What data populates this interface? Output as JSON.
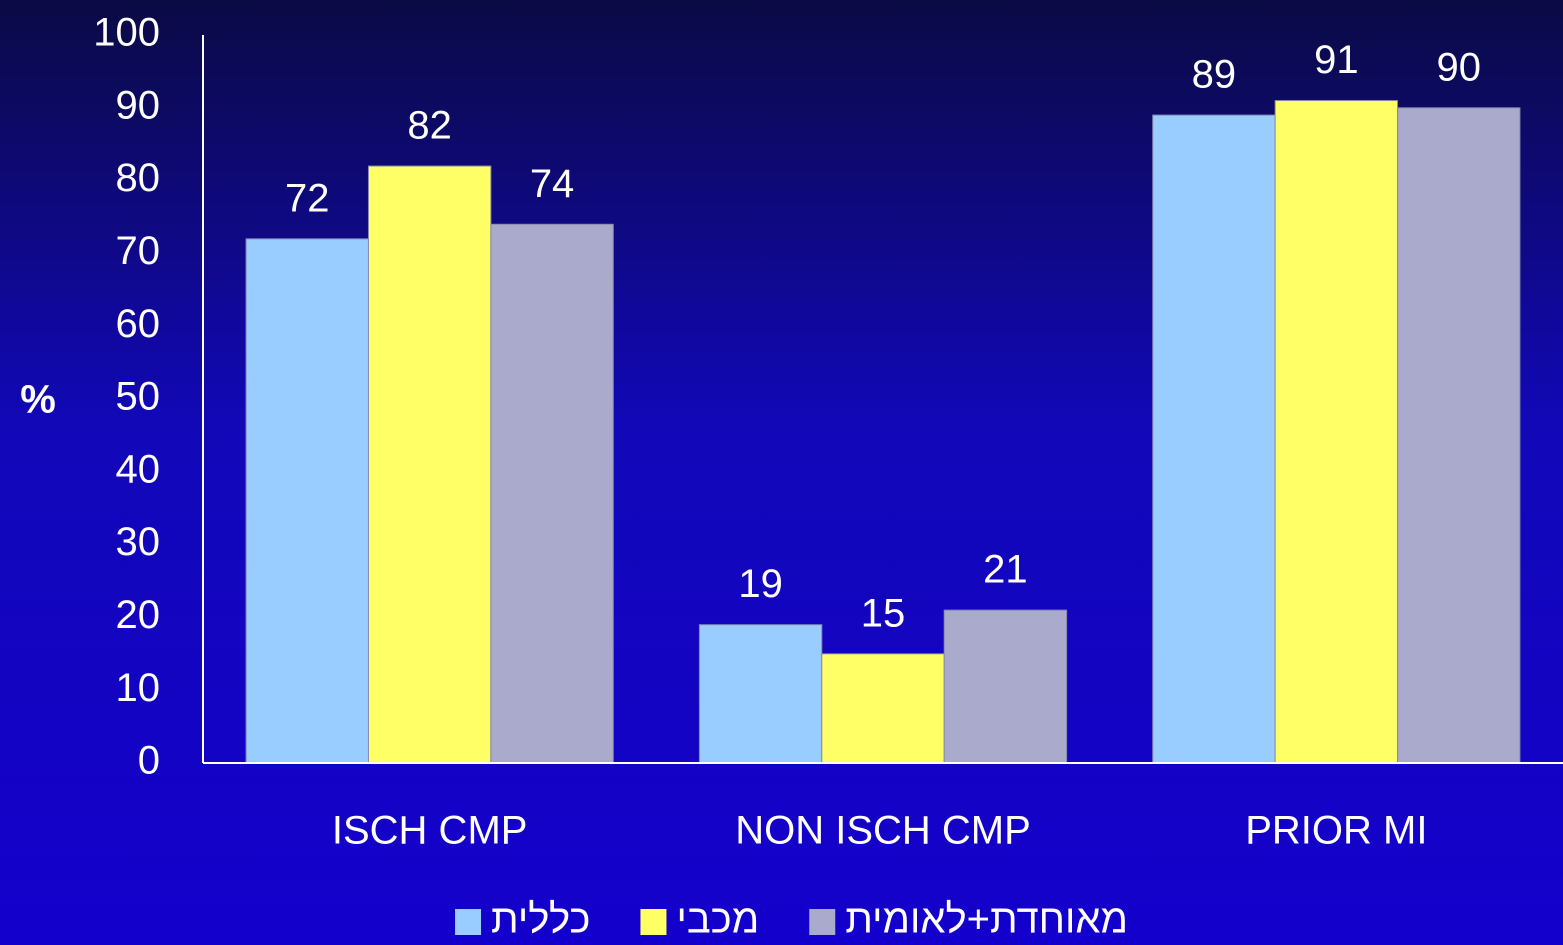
{
  "chart_data": {
    "type": "bar",
    "y_label": "%",
    "categories": [
      "ISCH CMP",
      "NON ISCH CMP",
      "PRIOR MI"
    ],
    "series": [
      {
        "name": "כללית",
        "color": "#99ccff",
        "values": [
          72,
          19,
          89
        ]
      },
      {
        "name": "מכבי",
        "color": "#ffff66",
        "values": [
          82,
          15,
          91
        ]
      },
      {
        "name": "מאוחדת+לאומית",
        "color": "#aaaacc",
        "values": [
          74,
          21,
          90
        ]
      }
    ],
    "ylim": [
      0,
      100
    ],
    "yticks": [
      0,
      10,
      20,
      30,
      40,
      50,
      60,
      70,
      80,
      90,
      100
    ],
    "grid": false,
    "legend": "bottom"
  }
}
